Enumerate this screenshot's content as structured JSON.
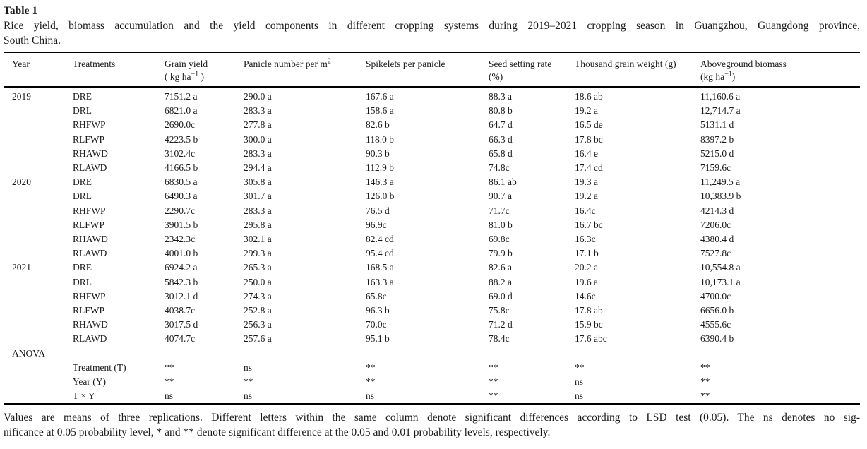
{
  "colors": {
    "background": "#ffffff",
    "text": "#1b1b1b",
    "rule": "#000000"
  },
  "table_label": "Table 1",
  "caption_lines": [
    "Rice yield, biomass accumulation and the yield components in different cropping systems during 2019–2021 cropping season in Guangzhou, Guangdong province,",
    "South China."
  ],
  "header": {
    "year": "Year",
    "treatments": "Treatments",
    "grain_yield": {
      "line1": "Grain yield",
      "line2_pre": "( kg ha",
      "sup": "−1",
      "line2_post": " )"
    },
    "panicle": {
      "pre": "Panicle number per m",
      "sup": "2"
    },
    "spikelets": "Spikelets per panicle",
    "seed_setting": {
      "line1": "Seed setting rate",
      "line2": "(%)"
    },
    "thousand_grain": "Thousand grain weight (g)",
    "aboveground": {
      "line1": "Aboveground biomass",
      "line2_pre": "(kg ha",
      "sup": "−1",
      "line2_post": ")"
    }
  },
  "body_rows": [
    {
      "year": "2019",
      "treatment": "DRE",
      "values": [
        "7151.2 a",
        "290.0 a",
        "167.6 a",
        "88.3 a",
        "18.6 ab",
        "11,160.6 a"
      ]
    },
    {
      "year": "",
      "treatment": "DRL",
      "values": [
        "6821.0 a",
        "283.3 a",
        "158.6 a",
        "80.8 b",
        "19.2 a",
        "12,714.7 a"
      ]
    },
    {
      "year": "",
      "treatment": "RHFWP",
      "values": [
        "2690.0c",
        "277.8 a",
        "82.6 b",
        "64.7 d",
        "16.5 de",
        "5131.1 d"
      ]
    },
    {
      "year": "",
      "treatment": "RLFWP",
      "values": [
        "4223.5 b",
        "300.0 a",
        "118.0 b",
        "66.3 d",
        "17.8 bc",
        "8397.2 b"
      ]
    },
    {
      "year": "",
      "treatment": "RHAWD",
      "values": [
        "3102.4c",
        "283.3 a",
        "90.3 b",
        "65.8 d",
        "16.4 e",
        "5215.0 d"
      ]
    },
    {
      "year": "",
      "treatment": "RLAWD",
      "values": [
        "4166.5 b",
        "294.4 a",
        "112.9 b",
        "74.8c",
        "17.4 cd",
        "7159.6c"
      ]
    },
    {
      "year": "2020",
      "treatment": "DRE",
      "values": [
        "6830.5 a",
        "305.8 a",
        "146.3 a",
        "86.1 ab",
        "19.3 a",
        "11,249.5 a"
      ]
    },
    {
      "year": "",
      "treatment": "DRL",
      "values": [
        "6490.3 a",
        "301.7 a",
        "126.0 b",
        "90.7 a",
        "19.2 a",
        "10,383.9 b"
      ]
    },
    {
      "year": "",
      "treatment": "RHFWP",
      "values": [
        "2290.7c",
        "283.3 a",
        "76.5 d",
        "71.7c",
        "16.4c",
        "4214.3 d"
      ]
    },
    {
      "year": "",
      "treatment": "RLFWP",
      "values": [
        "3901.5 b",
        "295.8 a",
        "96.9c",
        "81.0 b",
        "16.7 bc",
        "7206.0c"
      ]
    },
    {
      "year": "",
      "treatment": "RHAWD",
      "values": [
        "2342.3c",
        "302.1 a",
        "82.4 cd",
        "69.8c",
        "16.3c",
        "4380.4 d"
      ]
    },
    {
      "year": "",
      "treatment": "RLAWD",
      "values": [
        "4001.0 b",
        "299.3 a",
        "95.4 cd",
        "79.9 b",
        "17.1 b",
        "7527.8c"
      ]
    },
    {
      "year": "2021",
      "treatment": "DRE",
      "values": [
        "6924.2 a",
        "265.3 a",
        "168.5 a",
        "82.6 a",
        "20.2 a",
        "10,554.8 a"
      ]
    },
    {
      "year": "",
      "treatment": "DRL",
      "values": [
        "5842.3 b",
        "250.0 a",
        "163.3 a",
        "88.2 a",
        "19.6 a",
        "10,173.1 a"
      ]
    },
    {
      "year": "",
      "treatment": "RHFWP",
      "values": [
        "3012.1 d",
        "274.3 a",
        "65.8c",
        "69.0 d",
        "14.6c",
        "4700.0c"
      ]
    },
    {
      "year": "",
      "treatment": "RLFWP",
      "values": [
        "4038.7c",
        "252.8 a",
        "96.3 b",
        "75.8c",
        "17.8 ab",
        "6656.0 b"
      ]
    },
    {
      "year": "",
      "treatment": "RHAWD",
      "values": [
        "3017.5 d",
        "256.3 a",
        "70.0c",
        "71.2 d",
        "15.9 bc",
        "4555.6c"
      ]
    },
    {
      "year": "",
      "treatment": "RLAWD",
      "values": [
        "4074.7c",
        "257.6 a",
        "95.1 b",
        "78.4c",
        "17.6 abc",
        "6390.4 b"
      ]
    },
    {
      "year": "ANOVA",
      "treatment": "",
      "values": [
        "",
        "",
        "",
        "",
        "",
        ""
      ]
    },
    {
      "year": "",
      "treatment": "Treatment (T)",
      "values": [
        "**",
        "ns",
        "**",
        "**",
        "**",
        "**"
      ]
    },
    {
      "year": "",
      "treatment": "Year (Y)",
      "values": [
        "**",
        "**",
        "**",
        "**",
        "ns",
        "**"
      ]
    },
    {
      "year": "",
      "treatment": "T × Y",
      "values": [
        "ns",
        "ns",
        "ns",
        "**",
        "ns",
        "**"
      ]
    }
  ],
  "footnote_lines": [
    "Values are means of three replications. Different letters within the same column denote significant differences according to LSD test (0.05). The ns denotes no sig-",
    "nificance at 0.05 probability level, * and ** denote significant difference at the 0.05 and 0.01 probability levels, respectively."
  ]
}
